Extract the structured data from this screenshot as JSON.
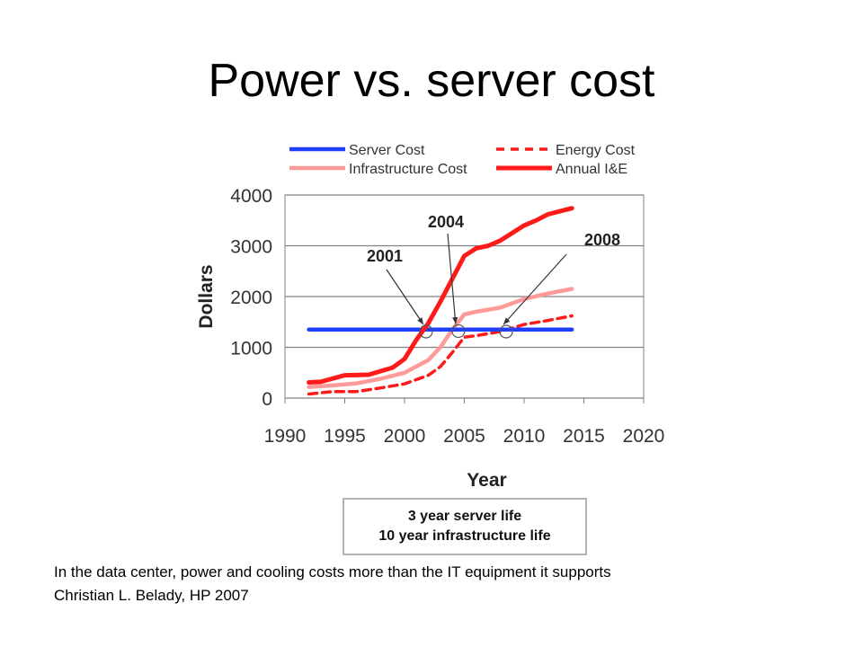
{
  "slide": {
    "title": "Power vs. server cost",
    "caption_line1": "In the data center, power and cooling costs more than the IT equipment it supports",
    "caption_line2": "Christian L. Belady, HP 2007"
  },
  "chart_data": {
    "type": "line",
    "title": "",
    "xlabel": "Year",
    "ylabel": "Dollars",
    "xlim": [
      1990,
      2020
    ],
    "ylim": [
      0,
      4000
    ],
    "x_ticks": [
      1990,
      1995,
      2000,
      2005,
      2010,
      2015,
      2020
    ],
    "y_ticks": [
      0,
      1000,
      2000,
      3000,
      4000
    ],
    "grid": "horizontal",
    "legend_position": "top",
    "series": [
      {
        "name": "Server Cost",
        "color": "#1f3fff",
        "style": "solid",
        "x": [
          1992,
          2014
        ],
        "y": [
          1350,
          1350
        ]
      },
      {
        "name": "Energy Cost",
        "color": "#ff1a1a",
        "style": "dashed",
        "x": [
          1992,
          1994,
          1996,
          1998,
          2000,
          2002,
          2003,
          2004,
          2005,
          2006,
          2008,
          2010,
          2012,
          2014
        ],
        "y": [
          80,
          130,
          130,
          200,
          280,
          450,
          620,
          900,
          1200,
          1230,
          1310,
          1450,
          1530,
          1620
        ]
      },
      {
        "name": "Infrastructure Cost",
        "color": "#ff9a9a",
        "style": "solid",
        "x": [
          1992,
          1994,
          1996,
          1998,
          2000,
          2002,
          2003,
          2004,
          2005,
          2006,
          2008,
          2010,
          2012,
          2014
        ],
        "y": [
          220,
          250,
          290,
          380,
          500,
          750,
          1000,
          1350,
          1650,
          1700,
          1780,
          1950,
          2060,
          2150
        ]
      },
      {
        "name": "Annual I&E",
        "color": "#ff1a1a",
        "style": "solid-thick",
        "x": [
          1992,
          1993,
          1995,
          1997,
          1999,
          2000,
          2001,
          2002,
          2003,
          2004,
          2005,
          2006,
          2007,
          2008,
          2009,
          2010,
          2011,
          2012,
          2013,
          2014
        ],
        "y": [
          310,
          320,
          450,
          460,
          600,
          770,
          1150,
          1480,
          1900,
          2350,
          2800,
          2950,
          3000,
          3100,
          3250,
          3400,
          3500,
          3620,
          3680,
          3740
        ]
      }
    ],
    "annotations": [
      {
        "label": "2001",
        "x": 2001.8,
        "y": 1310
      },
      {
        "label": "2004",
        "x": 2004.5,
        "y": 1320
      },
      {
        "label": "2008",
        "x": 2008.5,
        "y": 1310
      }
    ],
    "note_lines": [
      "3 year server life",
      "10 year infrastructure life"
    ]
  }
}
